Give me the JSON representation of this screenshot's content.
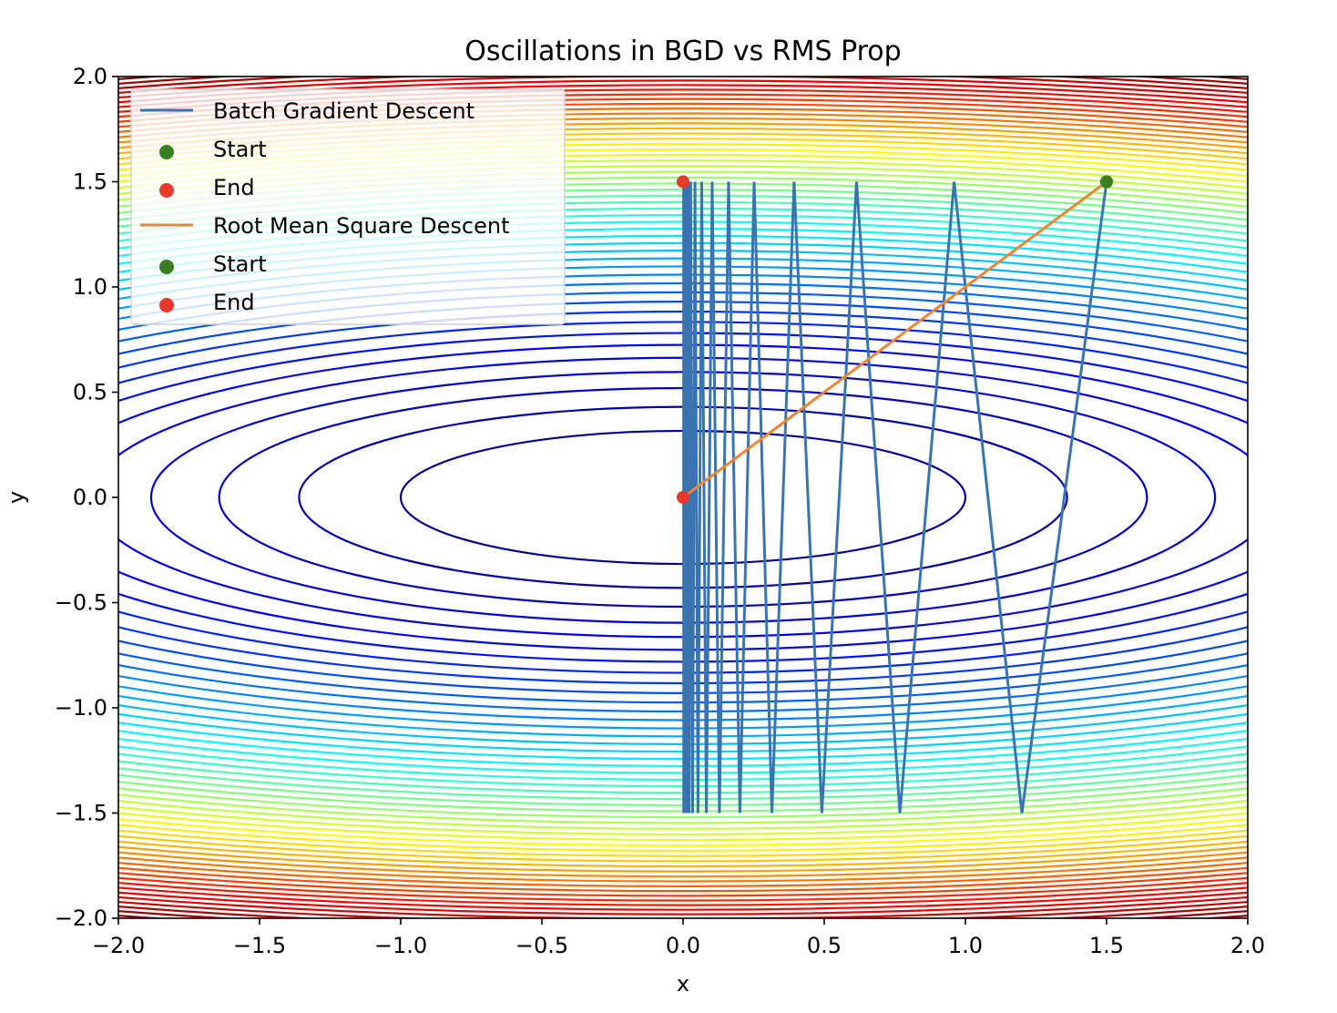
{
  "chart_data": {
    "type": "line",
    "title": "Oscillations in BGD vs RMS Prop",
    "xlabel": "x",
    "ylabel": "y",
    "xlim": [
      -2.0,
      2.0
    ],
    "ylim": [
      -2.0,
      2.0
    ],
    "x_ticks": [
      -2.0,
      -1.5,
      -1.0,
      -0.5,
      0.0,
      0.5,
      1.0,
      1.5,
      2.0
    ],
    "y_ticks": [
      -2.0,
      -1.5,
      -1.0,
      -0.5,
      0.0,
      0.5,
      1.0,
      1.5,
      2.0
    ],
    "x_tick_labels": [
      "−2.0",
      "−1.5",
      "−1.0",
      "−0.5",
      "0.0",
      "0.5",
      "1.0",
      "1.5",
      "2.0"
    ],
    "y_tick_labels": [
      "−2.0",
      "−1.5",
      "−1.0",
      "−0.5",
      "0.0",
      "0.5",
      "1.0",
      "1.5",
      "2.0"
    ],
    "grid": false,
    "legend_position": "top-left",
    "contour": {
      "function": "f(x, y) = x^2 + 10*y^2",
      "colormap": "jet",
      "levels": 50
    },
    "series": [
      {
        "name": "Batch Gradient Descent",
        "color": "#3a74b0",
        "x": [
          1.5,
          1.2,
          0.96,
          0.768,
          0.6144,
          0.4915,
          0.3932,
          0.3146,
          0.2517,
          0.2013,
          0.1611,
          0.1288,
          0.1031,
          0.0825,
          0.066,
          0.0528,
          0.0422,
          0.0338,
          0.027,
          0.0216,
          0.0173,
          0.0138,
          0.0111,
          0.0089,
          0.0071,
          0.0057,
          0.0045,
          0.0036,
          0.0029,
          0.0023,
          0.0019
        ],
        "y": [
          1.5,
          -1.5,
          1.5,
          -1.5,
          1.5,
          -1.5,
          1.5,
          -1.5,
          1.5,
          -1.5,
          1.5,
          -1.5,
          1.5,
          -1.5,
          1.5,
          -1.5,
          1.5,
          -1.5,
          1.5,
          -1.5,
          1.5,
          -1.5,
          1.5,
          -1.5,
          1.5,
          -1.5,
          1.5,
          -1.5,
          1.5,
          -1.5,
          1.5
        ],
        "start": {
          "label": "Start",
          "x": 1.5,
          "y": 1.5,
          "color": "#3a7d22"
        },
        "end": {
          "label": "End",
          "x": 0.0,
          "y": 1.5,
          "color": "#e8392c"
        }
      },
      {
        "name": "Root Mean Square Descent",
        "color": "#ef8533",
        "x": [
          1.5,
          0.0
        ],
        "y": [
          1.5,
          0.0
        ],
        "start": {
          "label": "Start",
          "x": 1.5,
          "y": 1.5,
          "color": "#3a7d22"
        },
        "end": {
          "label": "End",
          "x": 0.0,
          "y": 0.0,
          "color": "#e8392c"
        }
      }
    ],
    "legend": [
      {
        "label": "Batch Gradient Descent",
        "kind": "line",
        "color": "#3a74b0"
      },
      {
        "label": "Start",
        "kind": "marker",
        "color": "#3a7d22"
      },
      {
        "label": "End",
        "kind": "marker",
        "color": "#e8392c"
      },
      {
        "label": "Root Mean Square Descent",
        "kind": "line",
        "color": "#ef8533"
      },
      {
        "label": "Start",
        "kind": "marker",
        "color": "#3a7d22"
      },
      {
        "label": "End",
        "kind": "marker",
        "color": "#e8392c"
      }
    ]
  }
}
